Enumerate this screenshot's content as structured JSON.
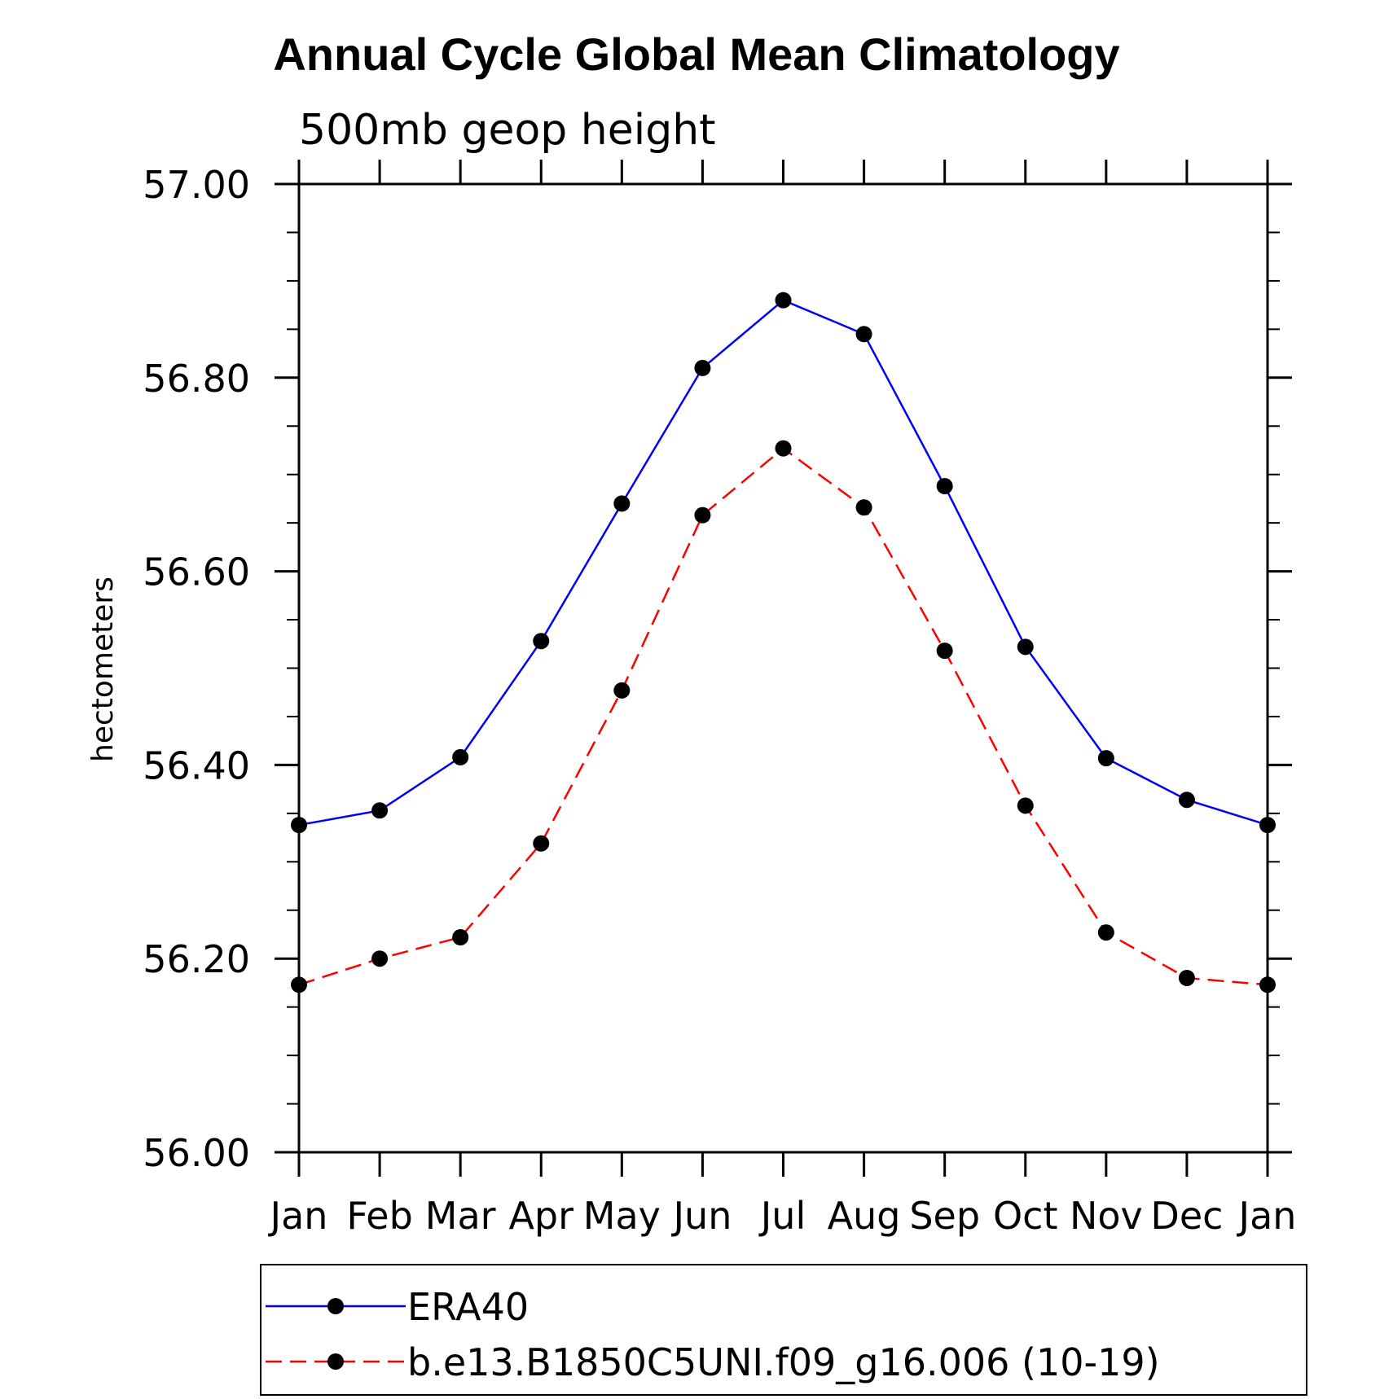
{
  "chart_data": {
    "type": "line",
    "title": "Annual Cycle Global Mean Climatology",
    "subtitle": "500mb geop height",
    "xlabel": "",
    "ylabel": "hectometers",
    "categories": [
      "Jan",
      "Feb",
      "Mar",
      "Apr",
      "May",
      "Jun",
      "Jul",
      "Aug",
      "Sep",
      "Oct",
      "Nov",
      "Dec",
      "Jan"
    ],
    "ylim": [
      56.0,
      57.0
    ],
    "yticks": [
      "56.00",
      "56.20",
      "56.40",
      "56.60",
      "56.80",
      "57.00"
    ],
    "grid": false,
    "legend_position": "bottom",
    "series": [
      {
        "name": "ERA40",
        "color": "#0000ff",
        "line_style": "solid",
        "marker": "filled-circle",
        "values": [
          56.338,
          56.353,
          56.408,
          56.528,
          56.67,
          56.81,
          56.88,
          56.845,
          56.688,
          56.522,
          56.407,
          56.364,
          56.338
        ]
      },
      {
        "name": "b.e13.B1850C5UNI.f09_g16.006 (10-19)",
        "color": "#ff0000",
        "line_style": "dashed",
        "marker": "filled-circle",
        "values": [
          56.173,
          56.2,
          56.222,
          56.319,
          56.477,
          56.658,
          56.727,
          56.666,
          56.518,
          56.358,
          56.227,
          56.18,
          56.173
        ]
      }
    ]
  }
}
